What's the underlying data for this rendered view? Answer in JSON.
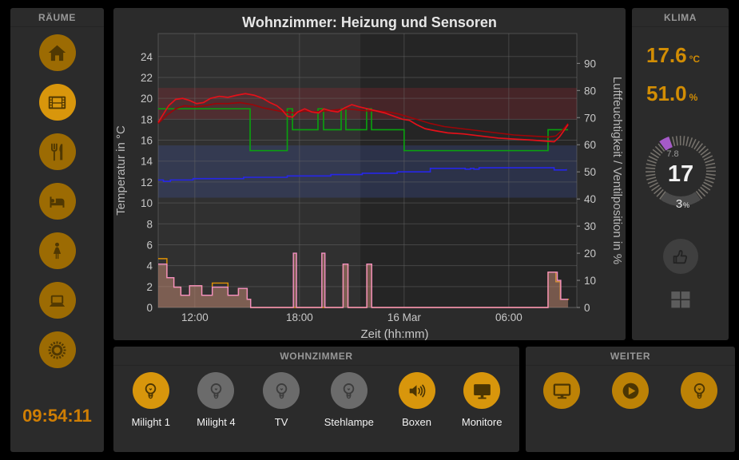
{
  "sidebar": {
    "title": "RÄUME",
    "clock": "09:54:11",
    "items": [
      {
        "name": "home",
        "icon": "home-icon",
        "active": false
      },
      {
        "name": "media-room",
        "icon": "film-icon",
        "active": true
      },
      {
        "name": "kitchen",
        "icon": "utensils-icon",
        "active": false
      },
      {
        "name": "bedroom",
        "icon": "bed-icon",
        "active": false
      },
      {
        "name": "bathroom",
        "icon": "female-icon",
        "active": false
      },
      {
        "name": "office",
        "icon": "laptop-icon",
        "active": false
      },
      {
        "name": "settings",
        "icon": "gear-icon",
        "active": false
      }
    ]
  },
  "chart": {
    "title": "Wohnzimmer: Heizung und Sensoren",
    "chart_data": {
      "type": "line",
      "title": "Wohnzimmer: Heizung und Sensoren",
      "xlabel": "Zeit (hh:mm)",
      "ylabel_left": "Temperatur in °C",
      "ylabel_right": "Luftfeuchtigkeit / Ventilposition in %",
      "xlim": [
        9.9,
        33.9
      ],
      "ylim_left": [
        0,
        26.2
      ],
      "ylim_right": [
        0,
        101
      ],
      "grid": true,
      "legend": "none",
      "x_ticks": [
        {
          "t": 12,
          "label": "12:00"
        },
        {
          "t": 18,
          "label": "18:00"
        },
        {
          "t": 24,
          "label": "16 Mar"
        },
        {
          "t": 30,
          "label": "06:00"
        }
      ],
      "y_ticks_left": [
        0,
        2,
        4,
        6,
        8,
        10,
        12,
        14,
        16,
        18,
        20,
        22,
        24
      ],
      "y_ticks_right": [
        0,
        10,
        20,
        30,
        40,
        50,
        60,
        70,
        80,
        90
      ],
      "day_night_split": 21.5,
      "plot_bg_day": "#303030",
      "plot_bg_night": "#252525",
      "grid_color": "#666666",
      "text_color": "#c8c8c8",
      "bands": [
        {
          "axis": "left",
          "from": 18,
          "to": 21,
          "color": "rgba(170,40,50,0.25)"
        },
        {
          "axis": "left",
          "from": 10.5,
          "to": 15.5,
          "color": "rgba(62,82,160,0.30)"
        }
      ],
      "series": [
        {
          "name": "ventilposition-orange",
          "axis": "right",
          "type": "step",
          "color": "#e09204",
          "width": 1.4,
          "points": [
            [
              9.9,
              18
            ],
            [
              10.4,
              11
            ],
            [
              10.8,
              7.5
            ],
            [
              11.2,
              4.5
            ],
            [
              11.7,
              8
            ],
            [
              12.4,
              4.5
            ],
            [
              13.0,
              9
            ],
            [
              13.9,
              4.5
            ],
            [
              14.5,
              7
            ],
            [
              15.0,
              3
            ],
            [
              15.2,
              0
            ],
            [
              20.5,
              0
            ],
            [
              20.5,
              16
            ],
            [
              20.78,
              16
            ],
            [
              20.78,
              0
            ],
            [
              21.86,
              0
            ],
            [
              21.86,
              16
            ],
            [
              22.14,
              16
            ],
            [
              22.14,
              0
            ],
            [
              32.25,
              0
            ],
            [
              32.25,
              13
            ],
            [
              32.7,
              13
            ],
            [
              32.7,
              9.5
            ],
            [
              32.95,
              9.5
            ],
            [
              32.95,
              3
            ],
            [
              33.45,
              3
            ]
          ]
        },
        {
          "name": "ventilposition-rosa",
          "axis": "right",
          "type": "step-area",
          "color": "#f28fc2",
          "fill": "rgba(200,140,115,0.5)",
          "width": 1.4,
          "points": [
            [
              9.9,
              16
            ],
            [
              10.4,
              11
            ],
            [
              10.8,
              7.5
            ],
            [
              11.2,
              4.5
            ],
            [
              11.7,
              8
            ],
            [
              12.4,
              4.5
            ],
            [
              13.0,
              7.5
            ],
            [
              13.9,
              4.5
            ],
            [
              14.5,
              7
            ],
            [
              15.0,
              3
            ],
            [
              15.2,
              0
            ],
            [
              17.65,
              0
            ],
            [
              17.65,
              20
            ],
            [
              17.83,
              20
            ],
            [
              17.83,
              0
            ],
            [
              19.28,
              0
            ],
            [
              19.28,
              20
            ],
            [
              19.46,
              20
            ],
            [
              19.46,
              0
            ],
            [
              20.5,
              0
            ],
            [
              20.5,
              16
            ],
            [
              20.78,
              16
            ],
            [
              20.78,
              0
            ],
            [
              21.86,
              0
            ],
            [
              21.86,
              16
            ],
            [
              22.14,
              16
            ],
            [
              22.14,
              0
            ],
            [
              32.25,
              0
            ],
            [
              32.25,
              13
            ],
            [
              32.78,
              13
            ],
            [
              32.78,
              10
            ],
            [
              32.98,
              10
            ],
            [
              32.98,
              3
            ],
            [
              33.4,
              3
            ]
          ]
        },
        {
          "name": "luftfeuchtigkeit",
          "axis": "right",
          "type": "step",
          "color": "#2626e8",
          "width": 1.6,
          "points": [
            [
              9.9,
              47
            ],
            [
              10.2,
              46.5
            ],
            [
              10.6,
              47
            ],
            [
              11.6,
              47
            ],
            [
              11.9,
              47.5
            ],
            [
              14.5,
              47.5
            ],
            [
              14.8,
              48
            ],
            [
              17.0,
              48
            ],
            [
              17.3,
              48.5
            ],
            [
              19.5,
              48.5
            ],
            [
              19.8,
              49
            ],
            [
              21.3,
              49
            ],
            [
              21.6,
              49.5
            ],
            [
              23.3,
              49.5
            ],
            [
              23.6,
              50
            ],
            [
              25.2,
              50
            ],
            [
              25.5,
              51.3
            ],
            [
              27.2,
              51.3
            ],
            [
              27.5,
              51
            ],
            [
              27.8,
              51.3
            ],
            [
              28.0,
              51
            ],
            [
              28.3,
              51.5
            ],
            [
              32.4,
              51.5
            ],
            [
              32.6,
              50.7
            ],
            [
              33.1,
              50.7
            ],
            [
              33.3,
              51
            ]
          ]
        },
        {
          "name": "soll-temperatur",
          "axis": "left",
          "type": "step",
          "color": "#09a30e",
          "width": 1.6,
          "points": [
            [
              9.9,
              19
            ],
            [
              15.17,
              15
            ],
            [
              16.97,
              15
            ],
            [
              17.3,
              19
            ],
            [
              17.6,
              17
            ],
            [
              19.06,
              19
            ],
            [
              19.38,
              17
            ],
            [
              20.39,
              19
            ],
            [
              20.66,
              17
            ],
            [
              21.85,
              19
            ],
            [
              22.13,
              17
            ],
            [
              24.0,
              15
            ],
            [
              32.25,
              17
            ],
            [
              33.4,
              17
            ]
          ]
        },
        {
          "name": "temperatur-2",
          "axis": "left",
          "type": "line",
          "color": "#9c0508",
          "width": 1.6,
          "points": [
            [
              9.9,
              17.6
            ],
            [
              10.4,
              18.4
            ],
            [
              10.9,
              19.0
            ],
            [
              11.4,
              19.3
            ],
            [
              12.0,
              19.2
            ],
            [
              12.6,
              19.3
            ],
            [
              13.2,
              19.5
            ],
            [
              13.9,
              19.5
            ],
            [
              14.6,
              19.6
            ],
            [
              15.3,
              19.4
            ],
            [
              15.9,
              19.1
            ],
            [
              16.5,
              18.9
            ],
            [
              17.1,
              18.7
            ],
            [
              17.7,
              18.6
            ],
            [
              18.3,
              18.8
            ],
            [
              18.9,
              18.7
            ],
            [
              19.5,
              18.8
            ],
            [
              20.1,
              18.9
            ],
            [
              20.7,
              19.0
            ],
            [
              21.3,
              18.9
            ],
            [
              21.9,
              18.8
            ],
            [
              22.5,
              18.8
            ],
            [
              23.1,
              18.7
            ],
            [
              23.7,
              18.5
            ],
            [
              24.3,
              18.2
            ],
            [
              24.9,
              17.9
            ],
            [
              25.5,
              17.6
            ],
            [
              26.3,
              17.3
            ],
            [
              27.3,
              17.1
            ],
            [
              28.3,
              16.9
            ],
            [
              29.3,
              16.7
            ],
            [
              30.3,
              16.5
            ],
            [
              31.3,
              16.4
            ],
            [
              32.3,
              16.3
            ],
            [
              32.7,
              16.4
            ],
            [
              33.1,
              17.0
            ],
            [
              33.4,
              17.6
            ]
          ]
        },
        {
          "name": "temperatur-1",
          "axis": "left",
          "type": "line",
          "color": "#e41019",
          "width": 1.7,
          "points": [
            [
              9.9,
              17.7
            ],
            [
              10.2,
              18.5
            ],
            [
              10.5,
              19.3
            ],
            [
              10.9,
              19.9
            ],
            [
              11.3,
              20.0
            ],
            [
              11.7,
              19.8
            ],
            [
              12.1,
              19.5
            ],
            [
              12.5,
              19.6
            ],
            [
              12.9,
              20.0
            ],
            [
              13.4,
              20.2
            ],
            [
              13.9,
              20.1
            ],
            [
              14.4,
              20.3
            ],
            [
              14.9,
              20.45
            ],
            [
              15.4,
              20.3
            ],
            [
              15.9,
              20.0
            ],
            [
              16.3,
              19.6
            ],
            [
              16.7,
              19.3
            ],
            [
              17.0,
              18.9
            ],
            [
              17.3,
              18.3
            ],
            [
              17.6,
              18.2
            ],
            [
              17.9,
              18.7
            ],
            [
              18.3,
              19.0
            ],
            [
              18.7,
              18.7
            ],
            [
              19.1,
              18.6
            ],
            [
              19.4,
              19.0
            ],
            [
              19.8,
              18.8
            ],
            [
              20.2,
              18.7
            ],
            [
              20.6,
              19.1
            ],
            [
              21.0,
              19.4
            ],
            [
              21.4,
              19.2
            ],
            [
              21.9,
              19.0
            ],
            [
              22.4,
              18.8
            ],
            [
              22.9,
              18.6
            ],
            [
              23.4,
              18.3
            ],
            [
              23.9,
              18.0
            ],
            [
              24.3,
              17.9
            ],
            [
              24.7,
              17.5
            ],
            [
              25.2,
              17.1
            ],
            [
              25.8,
              16.9
            ],
            [
              26.5,
              16.7
            ],
            [
              27.4,
              16.6
            ],
            [
              28.4,
              16.4
            ],
            [
              29.4,
              16.2
            ],
            [
              30.4,
              16.1
            ],
            [
              31.4,
              16.0
            ],
            [
              32.2,
              15.9
            ],
            [
              32.6,
              15.85
            ],
            [
              32.9,
              16.3
            ],
            [
              33.2,
              17.0
            ],
            [
              33.4,
              17.5
            ]
          ]
        }
      ]
    }
  },
  "klima": {
    "title": "KLIMA",
    "temperature": {
      "value": "17.6",
      "unit": "°C"
    },
    "humidity": {
      "value": "51.0",
      "unit": "%"
    },
    "thermostat": {
      "setpoint": "17",
      "marker_value": "7.8",
      "valve": "3",
      "valve_unit": "%"
    },
    "icons": [
      "thumb-up-icon",
      "windows-icon"
    ]
  },
  "wohnzimmer": {
    "title": "WOHNZIMMER",
    "buttons": [
      {
        "label": "Milight 1",
        "icon": "bulb-icon",
        "on": true
      },
      {
        "label": "Milight 4",
        "icon": "bulb-icon",
        "on": false
      },
      {
        "label": "TV",
        "icon": "bulb-icon",
        "on": false
      },
      {
        "label": "Stehlampe",
        "icon": "bulb-icon",
        "on": false
      },
      {
        "label": "Boxen",
        "icon": "speaker-icon",
        "on": true
      },
      {
        "label": "Monitore",
        "icon": "monitor-solid-icon",
        "on": true
      }
    ]
  },
  "weiter": {
    "title": "WEITER",
    "buttons": [
      {
        "label": "",
        "icon": "monitor-outline-icon",
        "on": true
      },
      {
        "label": "",
        "icon": "play-icon",
        "on": true
      },
      {
        "label": "",
        "icon": "bulb-icon",
        "on": true
      }
    ]
  },
  "colors": {
    "accent_on": "#d8960c",
    "accent_off": "#6b6b6b",
    "weiter_circle": "#bd8206",
    "sidebar_circle": "#9c6b03",
    "sidebar_circle_active": "#d8960c",
    "sidebar_glyph": "#503802",
    "button_glyph_on": "#4b3503",
    "button_glyph_off": "#3c3c3c",
    "clock": "#cf7e04",
    "klima_value": "#d28d04",
    "dial_marker": "#a55ac8"
  }
}
